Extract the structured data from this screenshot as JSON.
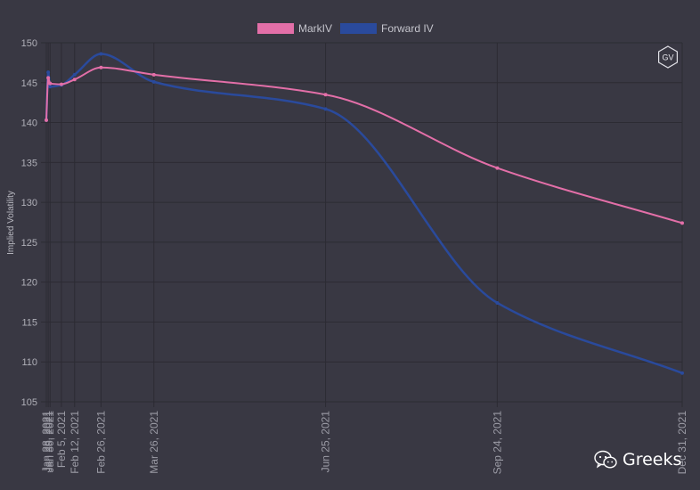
{
  "watermark": {
    "brand_text": "Greeks",
    "logo_text": "GV",
    "wechat_icon": "wechat-icon"
  },
  "colors": {
    "background": "#393843",
    "grid": "#2c2b33",
    "markiv": "#e36fa8",
    "forward_iv": "#2a4a9c"
  },
  "chart_data": {
    "type": "line",
    "title": "",
    "xlabel": "",
    "ylabel": "Implied Volatility",
    "ylim": [
      105,
      150
    ],
    "yticks": [
      105,
      110,
      115,
      120,
      125,
      130,
      135,
      140,
      145,
      150
    ],
    "x_axis_type": "time",
    "x_range": [
      "2021-01-28",
      "2021-12-31"
    ],
    "grid": true,
    "legend_position": "top",
    "x_ticks": [
      {
        "date": "2021-01-28",
        "label": "Jan 28, 2021"
      },
      {
        "date": "2021-01-29",
        "label": "Jan 29, 2021"
      },
      {
        "date": "2021-01-30",
        "label": "Jan 30, 2021"
      },
      {
        "date": "2021-02-05",
        "label": "Feb 5, 2021"
      },
      {
        "date": "2021-02-12",
        "label": "Feb 12, 2021"
      },
      {
        "date": "2021-02-26",
        "label": "Feb 26, 2021"
      },
      {
        "date": "2021-03-26",
        "label": "Mar 26, 2021"
      },
      {
        "date": "2021-06-25",
        "label": "Jun 25, 2021"
      },
      {
        "date": "2021-09-24",
        "label": "Sep 24, 2021"
      },
      {
        "date": "2021-12-31",
        "label": "Dec 31, 2021"
      }
    ],
    "series": [
      {
        "name": "MarkIV",
        "color": "#e36fa8",
        "points": [
          {
            "x": "2021-01-28",
            "y": 140.3
          },
          {
            "x": "2021-01-29",
            "y": 145.6
          },
          {
            "x": "2021-01-30",
            "y": 144.9
          },
          {
            "x": "2021-02-05",
            "y": 144.8
          },
          {
            "x": "2021-02-12",
            "y": 145.4
          },
          {
            "x": "2021-02-26",
            "y": 146.9
          },
          {
            "x": "2021-03-26",
            "y": 146.0
          },
          {
            "x": "2021-06-25",
            "y": 143.5
          },
          {
            "x": "2021-09-24",
            "y": 134.3
          },
          {
            "x": "2021-12-31",
            "y": 127.4
          }
        ]
      },
      {
        "name": "Forward IV",
        "color": "#2a4a9c",
        "points": [
          {
            "x": "2021-01-28",
            "y": 140.3
          },
          {
            "x": "2021-01-29",
            "y": 146.3
          },
          {
            "x": "2021-01-30",
            "y": 144.5
          },
          {
            "x": "2021-02-05",
            "y": 144.7
          },
          {
            "x": "2021-02-12",
            "y": 146.0
          },
          {
            "x": "2021-02-26",
            "y": 148.6
          },
          {
            "x": "2021-03-26",
            "y": 145.1
          },
          {
            "x": "2021-06-25",
            "y": 141.7
          },
          {
            "x": "2021-09-24",
            "y": 117.4
          },
          {
            "x": "2021-12-31",
            "y": 108.6
          }
        ]
      }
    ]
  }
}
